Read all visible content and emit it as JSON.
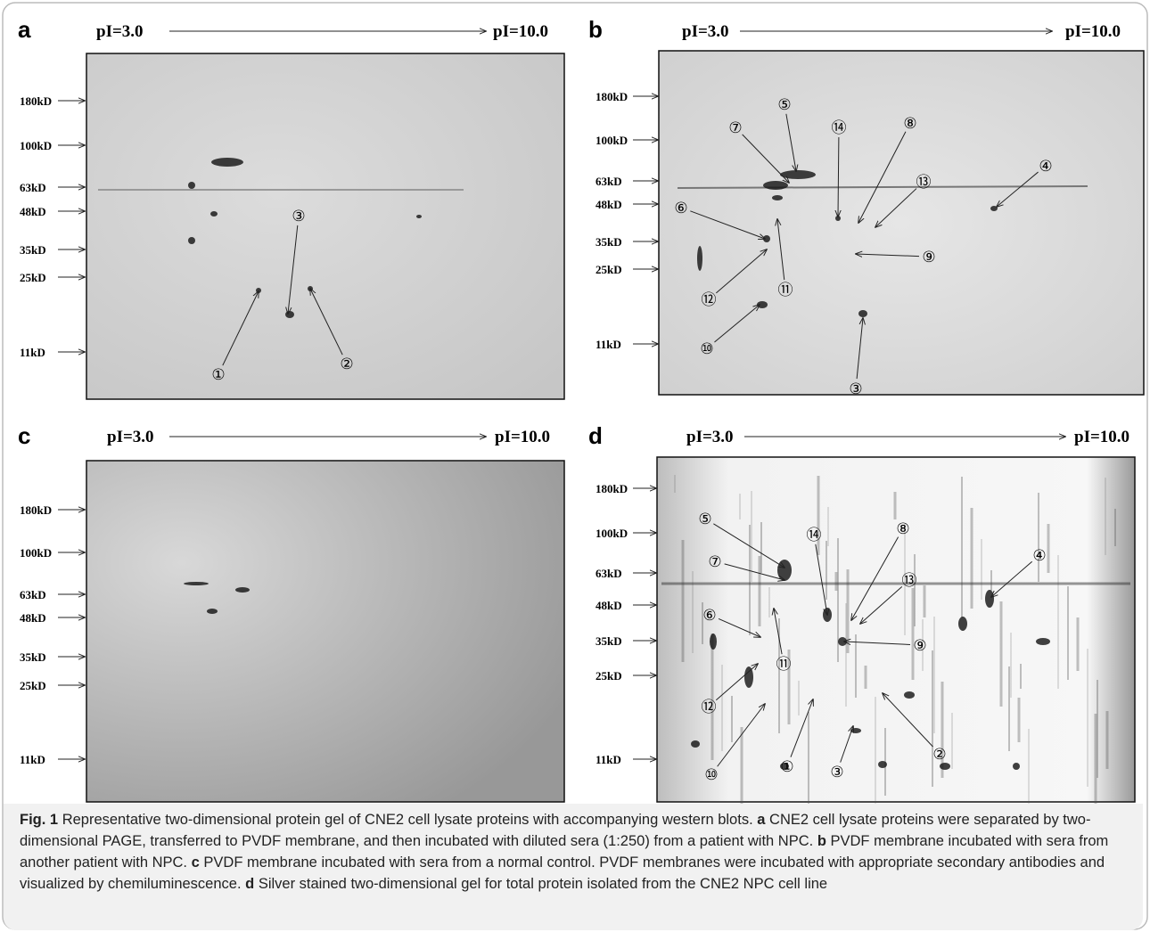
{
  "figure": {
    "panels": [
      {
        "label": "a",
        "pi_start": "pI=3.0",
        "pi_end": "pI=10.0",
        "markers": [
          "180kD",
          "100kD",
          "63kD",
          "48kD",
          "35kD",
          "25kD",
          "11kD"
        ],
        "spots": [
          "①",
          "②",
          "③"
        ]
      },
      {
        "label": "b",
        "pi_start": "pI=3.0",
        "pi_end": "pI=10.0",
        "markers": [
          "180kD",
          "100kD",
          "63kD",
          "48kD",
          "35kD",
          "25kD",
          "11kD"
        ],
        "spots": [
          "⑤",
          "⑦",
          "⑭",
          "⑧",
          "⑬",
          "④",
          "⑥",
          "⑨",
          "⑫",
          "⑪",
          "⑩",
          "③"
        ]
      },
      {
        "label": "c",
        "pi_start": "pI=3.0",
        "pi_end": "pI=10.0",
        "markers": [
          "180kD",
          "100kD",
          "63kD",
          "48kD",
          "35kD",
          "25kD",
          "11kD"
        ],
        "spots": []
      },
      {
        "label": "d",
        "pi_start": "pI=3.0",
        "pi_end": "pI=10.0",
        "markers": [
          "180kD",
          "100kD",
          "63kD",
          "48kD",
          "35kD",
          "25kD",
          "11kD"
        ],
        "spots": [
          "⑤",
          "⑦",
          "⑭",
          "⑧",
          "⑬",
          "④",
          "⑥",
          "⑨",
          "⑪",
          "⑫",
          "⑩",
          "①",
          "③",
          "②"
        ]
      }
    ],
    "caption": {
      "label": "Fig. 1",
      "intro": "Representative two-dimensional protein gel of CNE2 cell lysate proteins with accompanying western blots.",
      "items": [
        {
          "key": "a",
          "text": "CNE2 cell lysate proteins were separated by two-dimensional PAGE, transferred to PVDF membrane, and then incubated with diluted sera (1:250) from a patient with NPC."
        },
        {
          "key": "b",
          "text": "PVDF membrane incubated with sera from another patient with NPC."
        },
        {
          "key": "c",
          "text": "PVDF membrane incubated with sera from a normal control. PVDF membranes were incubated with appropriate secondary antibodies and visualized by chemiluminescence."
        },
        {
          "key": "d",
          "text": "Silver stained two-dimensional gel for total protein isolated from the CNE2 NPC cell line"
        }
      ]
    }
  }
}
